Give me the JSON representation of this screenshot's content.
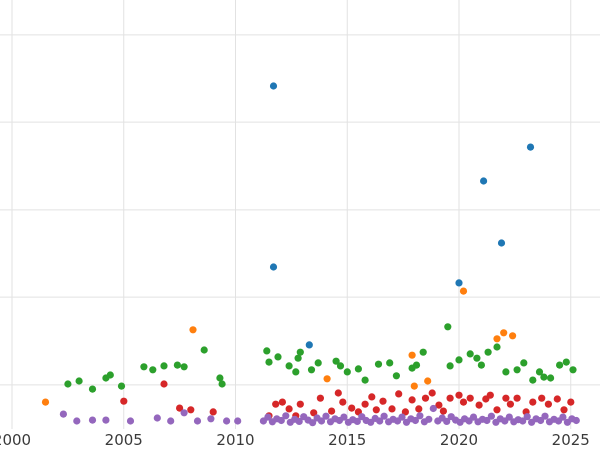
{
  "chart_data": {
    "type": "scatter",
    "title": "",
    "xlabel": "",
    "ylabel": "",
    "background_color": "#ffffff",
    "grid_color": "#e2e2e2",
    "grid_visible": true,
    "tick_label_color": "#3a3a3a",
    "tick_font_size": 15,
    "legend_visible": false,
    "y_axis_labels_visible": false,
    "xlim": [
      1999.5,
      2026.3
    ],
    "ylim": [
      0,
      100
    ],
    "x_ticks": [
      {
        "value": 2000,
        "label": "2000"
      },
      {
        "value": 2005,
        "label": "2005"
      },
      {
        "value": 2010,
        "label": "2010"
      },
      {
        "value": 2015,
        "label": "2015"
      },
      {
        "value": 2020,
        "label": "2020"
      },
      {
        "value": 2025,
        "label": "2025"
      }
    ],
    "y_gridlines": [
      10.5,
      30.9,
      51.2,
      71.6,
      91.9
    ],
    "series": [
      {
        "name": "blue",
        "color": "#1f77b4",
        "points": [
          [
            2011.7,
            80.0
          ],
          [
            2023.2,
            65.8
          ],
          [
            2021.1,
            57.9
          ],
          [
            2021.9,
            43.5
          ],
          [
            2011.7,
            37.9
          ],
          [
            2020.0,
            34.2
          ],
          [
            2013.3,
            19.8
          ]
        ]
      },
      {
        "name": "orange",
        "color": "#ff7f0e",
        "points": [
          [
            2001.5,
            6.5
          ],
          [
            2008.1,
            23.3
          ],
          [
            2014.1,
            11.9
          ],
          [
            2017.9,
            17.4
          ],
          [
            2018.0,
            10.2
          ],
          [
            2018.6,
            11.4
          ],
          [
            2020.2,
            32.3
          ],
          [
            2021.7,
            21.2
          ],
          [
            2022.0,
            22.6
          ],
          [
            2022.4,
            21.9
          ]
        ]
      },
      {
        "name": "green",
        "color": "#2ca02c",
        "points": [
          [
            2002.5,
            10.7
          ],
          [
            2003.0,
            11.4
          ],
          [
            2003.6,
            9.5
          ],
          [
            2004.2,
            12.1
          ],
          [
            2004.4,
            12.8
          ],
          [
            2004.9,
            10.2
          ],
          [
            2005.9,
            14.7
          ],
          [
            2006.3,
            14.0
          ],
          [
            2006.8,
            14.9
          ],
          [
            2007.4,
            15.1
          ],
          [
            2007.7,
            14.7
          ],
          [
            2008.6,
            18.6
          ],
          [
            2009.3,
            12.1
          ],
          [
            2009.4,
            10.7
          ],
          [
            2011.4,
            18.4
          ],
          [
            2011.5,
            15.8
          ],
          [
            2011.9,
            17.0
          ],
          [
            2012.4,
            14.9
          ],
          [
            2012.7,
            13.5
          ],
          [
            2012.8,
            16.7
          ],
          [
            2012.9,
            18.1
          ],
          [
            2013.4,
            14.0
          ],
          [
            2013.7,
            15.6
          ],
          [
            2014.5,
            16.0
          ],
          [
            2014.7,
            14.9
          ],
          [
            2015.0,
            13.5
          ],
          [
            2015.5,
            14.2
          ],
          [
            2015.8,
            11.6
          ],
          [
            2016.4,
            15.3
          ],
          [
            2016.9,
            15.6
          ],
          [
            2017.2,
            12.6
          ],
          [
            2017.9,
            14.4
          ],
          [
            2018.1,
            15.1
          ],
          [
            2018.4,
            18.1
          ],
          [
            2019.5,
            24.0
          ],
          [
            2019.6,
            14.9
          ],
          [
            2020.0,
            16.3
          ],
          [
            2020.5,
            17.7
          ],
          [
            2020.8,
            16.7
          ],
          [
            2021.0,
            15.1
          ],
          [
            2021.3,
            18.1
          ],
          [
            2021.7,
            19.3
          ],
          [
            2022.1,
            13.5
          ],
          [
            2022.6,
            14.0
          ],
          [
            2022.9,
            15.6
          ],
          [
            2023.3,
            11.6
          ],
          [
            2023.6,
            13.5
          ],
          [
            2023.8,
            12.3
          ],
          [
            2024.1,
            12.1
          ],
          [
            2024.5,
            15.1
          ],
          [
            2024.8,
            15.8
          ],
          [
            2025.1,
            14.0
          ]
        ]
      },
      {
        "name": "red",
        "color": "#d62728",
        "points": [
          [
            2005.0,
            6.7
          ],
          [
            2006.8,
            10.7
          ],
          [
            2007.5,
            5.1
          ],
          [
            2008.0,
            4.7
          ],
          [
            2009.0,
            4.2
          ],
          [
            2011.5,
            3.3
          ],
          [
            2011.8,
            6.0
          ],
          [
            2012.1,
            6.5
          ],
          [
            2012.4,
            4.9
          ],
          [
            2012.7,
            3.3
          ],
          [
            2012.9,
            6.0
          ],
          [
            2013.5,
            4.0
          ],
          [
            2013.8,
            7.4
          ],
          [
            2014.3,
            4.4
          ],
          [
            2014.6,
            8.6
          ],
          [
            2014.8,
            6.5
          ],
          [
            2015.2,
            5.1
          ],
          [
            2015.5,
            4.2
          ],
          [
            2015.8,
            6.0
          ],
          [
            2016.1,
            7.7
          ],
          [
            2016.3,
            4.7
          ],
          [
            2016.6,
            6.7
          ],
          [
            2017.0,
            4.9
          ],
          [
            2017.3,
            8.4
          ],
          [
            2017.6,
            4.2
          ],
          [
            2017.9,
            7.0
          ],
          [
            2018.2,
            4.9
          ],
          [
            2018.5,
            7.4
          ],
          [
            2018.8,
            8.6
          ],
          [
            2019.1,
            5.8
          ],
          [
            2019.3,
            4.4
          ],
          [
            2019.6,
            7.4
          ],
          [
            2020.0,
            8.1
          ],
          [
            2020.2,
            6.5
          ],
          [
            2020.5,
            7.4
          ],
          [
            2020.9,
            5.8
          ],
          [
            2021.2,
            7.2
          ],
          [
            2021.4,
            8.1
          ],
          [
            2021.7,
            4.7
          ],
          [
            2022.1,
            7.4
          ],
          [
            2022.3,
            6.0
          ],
          [
            2022.6,
            7.4
          ],
          [
            2023.0,
            4.2
          ],
          [
            2023.3,
            6.5
          ],
          [
            2023.7,
            7.4
          ],
          [
            2024.0,
            6.0
          ],
          [
            2024.4,
            7.2
          ],
          [
            2024.7,
            4.7
          ],
          [
            2025.0,
            6.5
          ]
        ]
      },
      {
        "name": "purple",
        "color": "#9467bd",
        "points": [
          [
            2002.3,
            3.7
          ],
          [
            2002.9,
            2.1
          ],
          [
            2003.6,
            2.3
          ],
          [
            2004.2,
            2.3
          ],
          [
            2005.3,
            2.1
          ],
          [
            2006.5,
            2.8
          ],
          [
            2007.1,
            2.1
          ],
          [
            2007.7,
            4.0
          ],
          [
            2008.3,
            2.1
          ],
          [
            2008.9,
            2.6
          ],
          [
            2009.6,
            2.1
          ],
          [
            2010.1,
            2.1
          ],
          [
            2011.25,
            2.1
          ],
          [
            2011.45,
            3.0
          ],
          [
            2011.65,
            1.9
          ],
          [
            2011.85,
            2.6
          ],
          [
            2012.05,
            2.2
          ],
          [
            2012.25,
            3.3
          ],
          [
            2012.45,
            1.8
          ],
          [
            2012.65,
            2.5
          ],
          [
            2012.85,
            2.0
          ],
          [
            2013.05,
            3.1
          ],
          [
            2013.25,
            2.3
          ],
          [
            2013.45,
            1.7
          ],
          [
            2013.65,
            2.8
          ],
          [
            2013.85,
            2.1
          ],
          [
            2014.05,
            3.2
          ],
          [
            2014.25,
            1.9
          ],
          [
            2014.45,
            2.6
          ],
          [
            2014.65,
            2.2
          ],
          [
            2014.85,
            3.0
          ],
          [
            2015.05,
            1.8
          ],
          [
            2015.25,
            2.4
          ],
          [
            2015.45,
            2.0
          ],
          [
            2015.65,
            3.1
          ],
          [
            2015.85,
            2.2
          ],
          [
            2016.05,
            1.8
          ],
          [
            2016.25,
            2.7
          ],
          [
            2016.45,
            2.1
          ],
          [
            2016.65,
            3.2
          ],
          [
            2016.85,
            1.9
          ],
          [
            2017.05,
            2.5
          ],
          [
            2017.25,
            2.1
          ],
          [
            2017.45,
            3.0
          ],
          [
            2017.65,
            1.8
          ],
          [
            2017.85,
            2.6
          ],
          [
            2018.05,
            2.2
          ],
          [
            2018.25,
            3.3
          ],
          [
            2018.45,
            1.9
          ],
          [
            2018.65,
            2.5
          ],
          [
            2018.85,
            5.0
          ],
          [
            2019.05,
            2.1
          ],
          [
            2019.25,
            2.8
          ],
          [
            2019.45,
            2.0
          ],
          [
            2019.65,
            3.1
          ],
          [
            2019.85,
            2.3
          ],
          [
            2020.05,
            1.8
          ],
          [
            2020.25,
            2.6
          ],
          [
            2020.45,
            2.1
          ],
          [
            2020.65,
            3.0
          ],
          [
            2020.85,
            1.9
          ],
          [
            2021.05,
            2.5
          ],
          [
            2021.25,
            2.2
          ],
          [
            2021.45,
            3.2
          ],
          [
            2021.65,
            1.8
          ],
          [
            2021.85,
            2.6
          ],
          [
            2022.05,
            2.1
          ],
          [
            2022.25,
            3.0
          ],
          [
            2022.45,
            1.9
          ],
          [
            2022.65,
            2.4
          ],
          [
            2022.85,
            2.1
          ],
          [
            2023.05,
            3.1
          ],
          [
            2023.25,
            1.8
          ],
          [
            2023.45,
            2.6
          ],
          [
            2023.65,
            2.2
          ],
          [
            2023.85,
            3.2
          ],
          [
            2024.05,
            1.9
          ],
          [
            2024.25,
            2.5
          ],
          [
            2024.45,
            2.1
          ],
          [
            2024.65,
            3.0
          ],
          [
            2024.85,
            1.8
          ],
          [
            2025.05,
            2.6
          ],
          [
            2025.25,
            2.2
          ]
        ]
      }
    ]
  }
}
